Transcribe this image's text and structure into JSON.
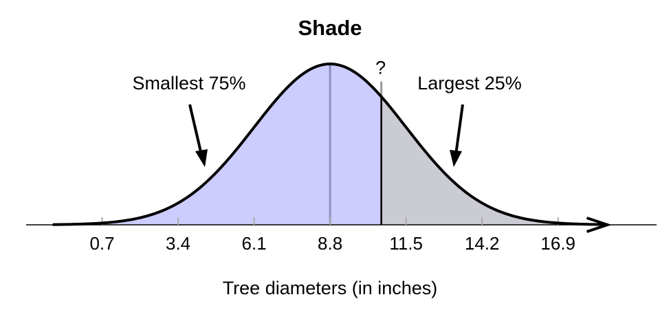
{
  "chart_data": {
    "type": "normal",
    "title": "Shade",
    "xlabel": "Tree diameters (in inches)",
    "mean": 8.8,
    "sd": 2.7,
    "cutoff": 10.62,
    "question": "?",
    "left_label": "Smallest 75%",
    "right_label": "Largest 25%",
    "left_color": "#ccccff",
    "right_color": "#cbcbd4",
    "mean_line_color": "#8f8fbf",
    "xlim": [
      -2.0,
      20.4
    ],
    "xticks": [
      0.7,
      3.4,
      6.1,
      8.8,
      11.5,
      14.2,
      16.9
    ]
  }
}
